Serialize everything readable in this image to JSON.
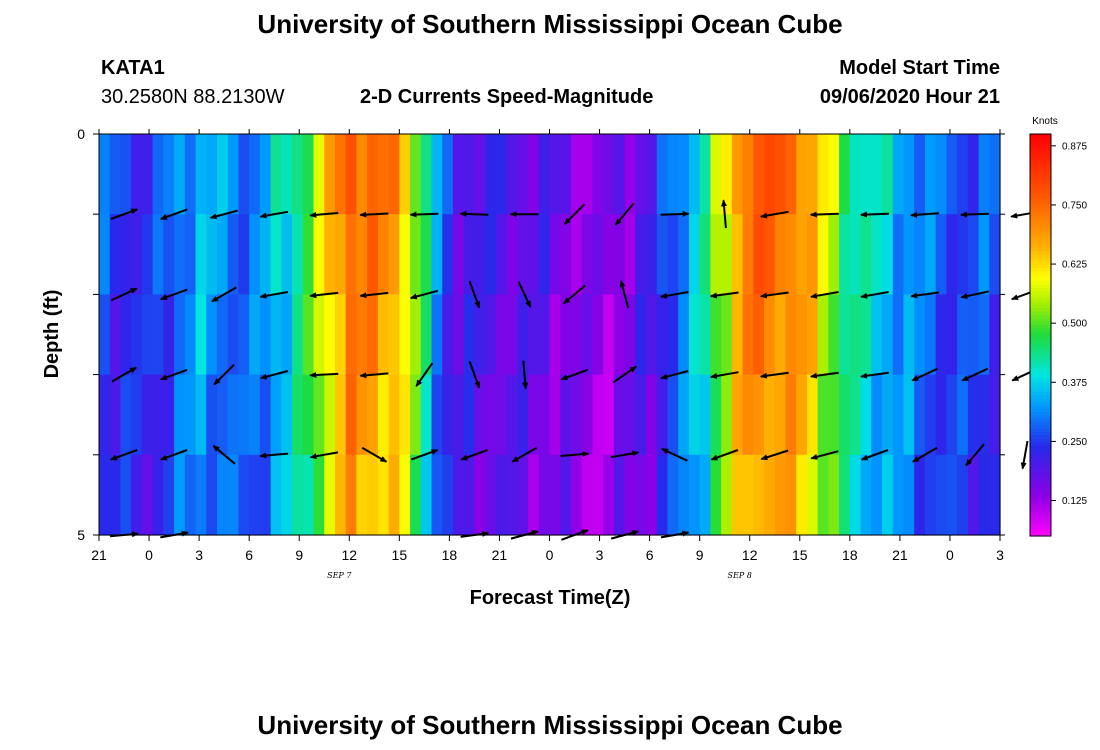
{
  "header": {
    "title": "University of Southern Mississippi Ocean Cube",
    "footer_title": "University of Southern Mississippi Ocean Cube",
    "station": "KATA1",
    "coords": "30.2580N 88.2130W",
    "chart_title": "2-D Currents Speed-Magnitude",
    "start_label": "Model Start Time",
    "start_value": "09/06/2020 Hour 21"
  },
  "chart_data": {
    "type": "heatmap",
    "title": "2-D Currents Speed-Magnitude",
    "xlabel": "Forecast Time(Z)",
    "ylabel": "Depth (ft)",
    "units": "Knots",
    "x_ticks": [
      "21",
      "0",
      "3",
      "6",
      "9",
      "12",
      "15",
      "18",
      "21",
      "0",
      "3",
      "6",
      "9",
      "12",
      "15",
      "18",
      "21",
      "0",
      "3"
    ],
    "y_ticks": [
      "0",
      "5"
    ],
    "ylim": [
      0,
      5
    ],
    "date_labels": [
      {
        "text": "SEP 7",
        "tick_index": 4.8
      },
      {
        "text": "SEP 8",
        "tick_index": 12.8
      }
    ],
    "colorbar_ticks": [
      "0.875",
      "0.750",
      "0.625",
      "0.500",
      "0.375",
      "0.250",
      "0.125"
    ],
    "colorbar_range": [
      0.05,
      0.9
    ],
    "grid": false,
    "profile_hours": [
      0,
      3,
      6,
      9,
      12,
      15,
      18,
      21,
      24,
      27,
      30,
      33,
      36,
      39,
      42,
      45,
      48,
      51,
      54
    ],
    "profile_speed": [
      0.27,
      0.24,
      0.36,
      0.29,
      0.45,
      0.78,
      0.7,
      0.22,
      0.2,
      0.18,
      0.13,
      0.2,
      0.4,
      0.78,
      0.74,
      0.45,
      0.35,
      0.27,
      0.28
    ],
    "vectors": [
      {
        "hour": 1.5,
        "depth": 1.0,
        "angle": 20
      },
      {
        "hour": 4.5,
        "depth": 1.0,
        "angle": 200
      },
      {
        "hour": 7.5,
        "depth": 1.0,
        "angle": 195
      },
      {
        "hour": 10.5,
        "depth": 1.0,
        "angle": 190
      },
      {
        "hour": 13.5,
        "depth": 1.0,
        "angle": 185
      },
      {
        "hour": 16.5,
        "depth": 1.0,
        "angle": 183
      },
      {
        "hour": 19.5,
        "depth": 1.0,
        "angle": 182
      },
      {
        "hour": 22.5,
        "depth": 1.0,
        "angle": 178
      },
      {
        "hour": 25.5,
        "depth": 1.0,
        "angle": 180
      },
      {
        "hour": 28.5,
        "depth": 1.0,
        "angle": 225
      },
      {
        "hour": 31.5,
        "depth": 1.0,
        "angle": 230
      },
      {
        "hour": 34.5,
        "depth": 1.0,
        "angle": 2
      },
      {
        "hour": 37.5,
        "depth": 1.0,
        "angle": 95
      },
      {
        "hour": 40.5,
        "depth": 1.0,
        "angle": 190
      },
      {
        "hour": 43.5,
        "depth": 1.0,
        "angle": 182
      },
      {
        "hour": 46.5,
        "depth": 1.0,
        "angle": 182
      },
      {
        "hour": 49.5,
        "depth": 1.0,
        "angle": 184
      },
      {
        "hour": 52.5,
        "depth": 1.0,
        "angle": 182
      },
      {
        "hour": 55.5,
        "depth": 1.0,
        "angle": 190
      },
      {
        "hour": 1.5,
        "depth": 2.0,
        "angle": 25
      },
      {
        "hour": 4.5,
        "depth": 2.0,
        "angle": 200
      },
      {
        "hour": 7.5,
        "depth": 2.0,
        "angle": 210
      },
      {
        "hour": 10.5,
        "depth": 2.0,
        "angle": 190
      },
      {
        "hour": 13.5,
        "depth": 2.0,
        "angle": 186
      },
      {
        "hour": 16.5,
        "depth": 2.0,
        "angle": 186
      },
      {
        "hour": 19.5,
        "depth": 2.0,
        "angle": 195
      },
      {
        "hour": 22.5,
        "depth": 2.0,
        "angle": 290
      },
      {
        "hour": 25.5,
        "depth": 2.0,
        "angle": 295
      },
      {
        "hour": 28.5,
        "depth": 2.0,
        "angle": 220
      },
      {
        "hour": 31.5,
        "depth": 2.0,
        "angle": 105
      },
      {
        "hour": 34.5,
        "depth": 2.0,
        "angle": 190
      },
      {
        "hour": 37.5,
        "depth": 2.0,
        "angle": 188
      },
      {
        "hour": 40.5,
        "depth": 2.0,
        "angle": 188
      },
      {
        "hour": 43.5,
        "depth": 2.0,
        "angle": 190
      },
      {
        "hour": 46.5,
        "depth": 2.0,
        "angle": 190
      },
      {
        "hour": 49.5,
        "depth": 2.0,
        "angle": 188
      },
      {
        "hour": 52.5,
        "depth": 2.0,
        "angle": 192
      },
      {
        "hour": 55.5,
        "depth": 2.0,
        "angle": 200
      },
      {
        "hour": 1.5,
        "depth": 3.0,
        "angle": 30
      },
      {
        "hour": 4.5,
        "depth": 3.0,
        "angle": 200
      },
      {
        "hour": 7.5,
        "depth": 3.0,
        "angle": 225
      },
      {
        "hour": 10.5,
        "depth": 3.0,
        "angle": 195
      },
      {
        "hour": 13.5,
        "depth": 3.0,
        "angle": 183
      },
      {
        "hour": 16.5,
        "depth": 3.0,
        "angle": 185
      },
      {
        "hour": 19.5,
        "depth": 3.0,
        "angle": 235
      },
      {
        "hour": 22.5,
        "depth": 3.0,
        "angle": 290
      },
      {
        "hour": 25.5,
        "depth": 3.0,
        "angle": 275
      },
      {
        "hour": 28.5,
        "depth": 3.0,
        "angle": 200
      },
      {
        "hour": 31.5,
        "depth": 3.0,
        "angle": 35
      },
      {
        "hour": 34.5,
        "depth": 3.0,
        "angle": 195
      },
      {
        "hour": 37.5,
        "depth": 3.0,
        "angle": 190
      },
      {
        "hour": 40.5,
        "depth": 3.0,
        "angle": 188
      },
      {
        "hour": 43.5,
        "depth": 3.0,
        "angle": 188
      },
      {
        "hour": 46.5,
        "depth": 3.0,
        "angle": 188
      },
      {
        "hour": 49.5,
        "depth": 3.0,
        "angle": 205
      },
      {
        "hour": 52.5,
        "depth": 3.0,
        "angle": 205
      },
      {
        "hour": 55.5,
        "depth": 3.0,
        "angle": 205
      },
      {
        "hour": 1.5,
        "depth": 4.0,
        "angle": 200
      },
      {
        "hour": 4.5,
        "depth": 4.0,
        "angle": 200
      },
      {
        "hour": 7.5,
        "depth": 4.0,
        "angle": 140
      },
      {
        "hour": 10.5,
        "depth": 4.0,
        "angle": 185
      },
      {
        "hour": 13.5,
        "depth": 4.0,
        "angle": 190
      },
      {
        "hour": 16.5,
        "depth": 4.0,
        "angle": 330
      },
      {
        "hour": 19.5,
        "depth": 4.0,
        "angle": 20
      },
      {
        "hour": 22.5,
        "depth": 4.0,
        "angle": 200
      },
      {
        "hour": 25.5,
        "depth": 4.0,
        "angle": 210
      },
      {
        "hour": 28.5,
        "depth": 4.0,
        "angle": 5
      },
      {
        "hour": 31.5,
        "depth": 4.0,
        "angle": 10
      },
      {
        "hour": 34.5,
        "depth": 4.0,
        "angle": 155
      },
      {
        "hour": 37.5,
        "depth": 4.0,
        "angle": 200
      },
      {
        "hour": 40.5,
        "depth": 4.0,
        "angle": 198
      },
      {
        "hour": 43.5,
        "depth": 4.0,
        "angle": 195
      },
      {
        "hour": 46.5,
        "depth": 4.0,
        "angle": 200
      },
      {
        "hour": 49.5,
        "depth": 4.0,
        "angle": 210
      },
      {
        "hour": 52.5,
        "depth": 4.0,
        "angle": 230
      },
      {
        "hour": 55.5,
        "depth": 4.0,
        "angle": 260
      },
      {
        "hour": 1.5,
        "depth": 5.0,
        "angle": 5
      },
      {
        "hour": 4.5,
        "depth": 5.0,
        "angle": 10
      },
      {
        "hour": 22.5,
        "depth": 5.0,
        "angle": 8
      },
      {
        "hour": 25.5,
        "depth": 5.0,
        "angle": 15
      },
      {
        "hour": 28.5,
        "depth": 5.0,
        "angle": 20
      },
      {
        "hour": 31.5,
        "depth": 5.0,
        "angle": 15
      },
      {
        "hour": 34.5,
        "depth": 5.0,
        "angle": 10
      }
    ]
  }
}
